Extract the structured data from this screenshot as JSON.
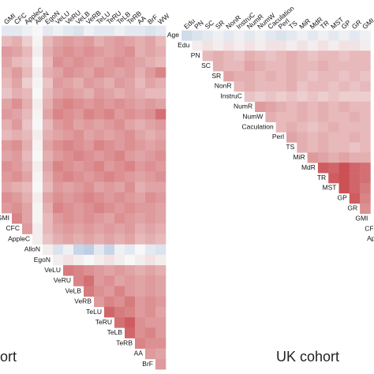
{
  "chart_data": [
    {
      "type": "heatmap",
      "caption": "ort",
      "x": [
        "GMI",
        "CFC",
        "AppleC",
        "AlloN",
        "EgoN",
        "VeLU",
        "VeRU",
        "VeLB",
        "VeRB",
        "TeLU",
        "TeRU",
        "TeLB",
        "TeRB",
        "AA",
        "BrF",
        "WW"
      ],
      "y": [
        null,
        null,
        null,
        null,
        null,
        null,
        null,
        null,
        null,
        null,
        null,
        null,
        null,
        null,
        null,
        null,
        null,
        null,
        "GMI",
        "CFC",
        "AppleC",
        "AlloN",
        "EgoN",
        "VeLU",
        "VeRU",
        "VeLB",
        "VeRB",
        "TeLU",
        "TeRU",
        "TeLB",
        "TeRB",
        "AA",
        "BrF"
      ],
      "values": [
        [
          -0.1,
          -0.1,
          -0.05,
          0,
          -0.1,
          -0.05,
          -0.1,
          -0.15,
          -0.05,
          -0.1,
          -0.1,
          -0.05,
          -0.1,
          -0.1,
          -0.15,
          -0.1
        ],
        [
          0.3,
          0.35,
          0.2,
          0.02,
          0.3,
          0.4,
          0.45,
          0.4,
          0.45,
          0.35,
          0.4,
          0.45,
          0.4,
          0.35,
          0.4,
          0.3
        ],
        [
          0.45,
          0.4,
          0.3,
          0.05,
          0.35,
          0.45,
          0.5,
          0.45,
          0.5,
          0.45,
          0.4,
          0.45,
          0.5,
          0.35,
          0.4,
          0.35
        ],
        [
          0.4,
          0.3,
          0.25,
          0,
          0.3,
          0.5,
          0.45,
          0.5,
          0.45,
          0.4,
          0.45,
          0.5,
          0.45,
          0.4,
          0.35,
          0.3
        ],
        [
          0.35,
          0.45,
          0.3,
          0.05,
          0.35,
          0.4,
          0.5,
          0.45,
          0.4,
          0.5,
          0.45,
          0.4,
          0.45,
          0.35,
          0.45,
          0.55
        ],
        [
          0.3,
          0.4,
          0.2,
          0.02,
          0.25,
          0.45,
          0.4,
          0.35,
          0.45,
          0.4,
          0.35,
          0.45,
          0.4,
          0.3,
          0.4,
          0.35
        ],
        [
          0.25,
          0.35,
          0.3,
          0,
          0.3,
          0.4,
          0.45,
          0.4,
          0.35,
          0.45,
          0.4,
          0.35,
          0.4,
          0.35,
          0.3,
          0.3
        ],
        [
          0.4,
          0.5,
          0.35,
          0.05,
          0.35,
          0.5,
          0.55,
          0.5,
          0.45,
          0.5,
          0.45,
          0.5,
          0.45,
          0.4,
          0.45,
          0.4
        ],
        [
          0.45,
          0.4,
          0.3,
          0.02,
          0.4,
          0.55,
          0.5,
          0.45,
          0.55,
          0.5,
          0.55,
          0.45,
          0.5,
          0.45,
          0.5,
          0.65
        ],
        [
          0.35,
          0.45,
          0.25,
          0,
          0.3,
          0.45,
          0.5,
          0.4,
          0.45,
          0.4,
          0.45,
          0.5,
          0.4,
          0.35,
          0.4,
          0.45
        ],
        [
          0.3,
          0.35,
          0.3,
          0.05,
          0.35,
          0.4,
          0.45,
          0.5,
          0.4,
          0.45,
          0.4,
          0.45,
          0.5,
          0.4,
          0.35,
          0.4
        ],
        [
          0.45,
          0.5,
          0.35,
          0.02,
          0.4,
          0.5,
          0.55,
          0.5,
          0.45,
          0.55,
          0.5,
          0.45,
          0.5,
          0.45,
          0.4,
          0.45
        ],
        [
          0.4,
          0.45,
          0.3,
          0,
          0.35,
          0.45,
          0.5,
          0.55,
          0.5,
          0.45,
          0.5,
          0.55,
          0.45,
          0.4,
          0.45,
          0.5
        ],
        [
          0.5,
          0.45,
          0.35,
          0.05,
          0.4,
          0.55,
          0.5,
          0.45,
          0.5,
          0.55,
          0.45,
          0.5,
          0.55,
          0.45,
          0.5,
          0.45
        ],
        [
          0.45,
          0.5,
          0.4,
          0.02,
          0.35,
          0.5,
          0.55,
          0.5,
          0.45,
          0.5,
          0.55,
          0.5,
          0.45,
          0.4,
          0.45,
          0.5
        ],
        [
          0.4,
          0.35,
          0.3,
          0,
          0.3,
          0.45,
          0.4,
          0.45,
          0.5,
          0.4,
          0.45,
          0.4,
          0.5,
          0.35,
          0.4,
          0.4
        ],
        [
          0.5,
          0.45,
          0.35,
          0.05,
          0.4,
          0.5,
          0.45,
          0.5,
          0.55,
          0.5,
          0.45,
          0.5,
          0.45,
          0.4,
          0.5,
          0.45
        ],
        [
          0.45,
          0.5,
          0.4,
          0.02,
          0.35,
          0.55,
          0.5,
          0.45,
          0.5,
          0.55,
          0.5,
          0.45,
          0.5,
          0.45,
          0.45,
          0.4
        ],
        [
          null,
          0.55,
          0.4,
          0.02,
          0.3,
          0.45,
          0.5,
          0.45,
          0.5,
          0.45,
          0.4,
          0.5,
          0.45,
          0.4,
          0.45,
          0.4
        ],
        [
          null,
          null,
          0.45,
          0.05,
          0.3,
          0.4,
          0.45,
          0.4,
          0.45,
          0.4,
          0.45,
          0.4,
          0.45,
          0.35,
          0.4,
          0.35
        ],
        [
          null,
          null,
          null,
          0.05,
          0.25,
          0.35,
          0.4,
          0.35,
          0.4,
          0.35,
          0.4,
          0.35,
          0.4,
          0.3,
          0.35,
          0.3
        ],
        [
          null,
          null,
          null,
          null,
          0.05,
          -0.15,
          -0.05,
          -0.25,
          -0.3,
          -0.1,
          -0.25,
          -0.05,
          -0.1,
          0,
          -0.1,
          -0.15
        ],
        [
          null,
          null,
          null,
          null,
          null,
          0.05,
          0.1,
          0.05,
          0,
          0.05,
          0.1,
          0.05,
          0,
          0.05,
          0.1,
          0.05
        ],
        [
          null,
          null,
          null,
          null,
          null,
          null,
          0.6,
          0.55,
          0.5,
          0.45,
          0.4,
          0.45,
          0.4,
          0.35,
          0.4,
          0.35
        ],
        [
          null,
          null,
          null,
          null,
          null,
          null,
          null,
          0.55,
          0.65,
          0.45,
          0.5,
          0.4,
          0.45,
          0.4,
          0.45,
          0.4
        ],
        [
          null,
          null,
          null,
          null,
          null,
          null,
          null,
          null,
          0.6,
          0.5,
          0.45,
          0.55,
          0.45,
          0.4,
          0.45,
          0.4
        ],
        [
          null,
          null,
          null,
          null,
          null,
          null,
          null,
          null,
          null,
          0.45,
          0.55,
          0.5,
          0.6,
          0.45,
          0.5,
          0.45
        ],
        [
          null,
          null,
          null,
          null,
          null,
          null,
          null,
          null,
          null,
          null,
          0.7,
          0.6,
          0.55,
          0.45,
          0.5,
          0.4
        ],
        [
          null,
          null,
          null,
          null,
          null,
          null,
          null,
          null,
          null,
          null,
          null,
          0.65,
          0.75,
          0.5,
          0.45,
          0.45
        ],
        [
          null,
          null,
          null,
          null,
          null,
          null,
          null,
          null,
          null,
          null,
          null,
          null,
          0.7,
          0.5,
          0.55,
          0.45
        ],
        [
          null,
          null,
          null,
          null,
          null,
          null,
          null,
          null,
          null,
          null,
          null,
          null,
          null,
          0.55,
          0.5,
          0.5
        ],
        [
          null,
          null,
          null,
          null,
          null,
          null,
          null,
          null,
          null,
          null,
          null,
          null,
          null,
          null,
          0.45,
          0.4
        ],
        [
          null,
          null,
          null,
          null,
          null,
          null,
          null,
          null,
          null,
          null,
          null,
          null,
          null,
          null,
          null,
          0.45
        ]
      ],
      "vlim": [
        -1,
        1
      ],
      "colors": [
        "#3b6fb6",
        "#f7f7f7",
        "#c0282d"
      ]
    },
    {
      "type": "heatmap",
      "caption": "UK cohort",
      "x": [
        "Edu",
        "PN",
        "SC",
        "SR",
        "NonR",
        "InstruC",
        "NumR",
        "NumW",
        "Caculation",
        "Perl",
        "TS",
        "MiR",
        "MdR",
        "TR",
        "MST",
        "GP",
        "GR",
        "GMI"
      ],
      "y": [
        "Age",
        "Edu",
        "PN",
        "SC",
        "SR",
        "NonR",
        "InstruC",
        "NumR",
        "NumW",
        "Caculation",
        "Perl",
        "TS",
        "MiR",
        "MdR",
        "TR",
        "MST",
        "GP",
        "GR",
        "GMI",
        "CFC",
        "AppleC"
      ],
      "values": [
        [
          -0.2,
          -0.15,
          -0.1,
          -0.05,
          -0.1,
          -0.05,
          -0.1,
          -0.05,
          -0.1,
          -0.15,
          -0.1,
          -0.05,
          -0.1,
          -0.05,
          -0.1,
          -0.05,
          -0.1,
          -0.05
        ],
        [
          null,
          0.05,
          0.1,
          0.05,
          0.1,
          0.05,
          0.1,
          0.05,
          0.1,
          0.1,
          0.05,
          0.1,
          0.05,
          0.1,
          0.05,
          0.1,
          0.1,
          0.05
        ],
        [
          null,
          null,
          0.3,
          0.35,
          0.3,
          0.25,
          0.35,
          0.3,
          0.25,
          0.3,
          0.35,
          0.3,
          0.25,
          0.3,
          0.3,
          0.25,
          0.3,
          0.3
        ],
        [
          null,
          null,
          null,
          0.35,
          0.3,
          0.3,
          0.4,
          0.35,
          0.3,
          0.3,
          0.35,
          0.3,
          0.3,
          0.35,
          0.3,
          0.3,
          0.3,
          0.3
        ],
        [
          null,
          null,
          null,
          null,
          0.4,
          0.35,
          0.35,
          0.3,
          0.35,
          0.3,
          0.35,
          0.3,
          0.25,
          0.3,
          0.3,
          0.25,
          0.3,
          0.25
        ],
        [
          null,
          null,
          null,
          null,
          null,
          0.3,
          0.35,
          0.3,
          0.3,
          0.3,
          0.35,
          0.25,
          0.3,
          0.3,
          0.25,
          0.3,
          0.25,
          0.3
        ],
        [
          null,
          null,
          null,
          null,
          null,
          null,
          0.25,
          0.2,
          0.25,
          0.2,
          0.25,
          0.2,
          0.25,
          0.2,
          0.25,
          0.2,
          0.2,
          0.2
        ],
        [
          null,
          null,
          null,
          null,
          null,
          null,
          null,
          0.45,
          0.4,
          0.35,
          0.3,
          0.35,
          0.3,
          0.35,
          0.3,
          0.35,
          0.3,
          0.3
        ],
        [
          null,
          null,
          null,
          null,
          null,
          null,
          null,
          null,
          0.35,
          0.3,
          0.3,
          0.35,
          0.3,
          0.35,
          0.3,
          0.3,
          0.35,
          0.3
        ],
        [
          null,
          null,
          null,
          null,
          null,
          null,
          null,
          null,
          null,
          0.3,
          0.35,
          0.3,
          0.25,
          0.3,
          0.35,
          0.3,
          0.3,
          0.3
        ],
        [
          null,
          null,
          null,
          null,
          null,
          null,
          null,
          null,
          null,
          null,
          0.4,
          0.35,
          0.3,
          0.35,
          0.3,
          0.3,
          0.35,
          0.3
        ],
        [
          null,
          null,
          null,
          null,
          null,
          null,
          null,
          null,
          null,
          null,
          null,
          0.35,
          0.3,
          0.35,
          0.3,
          0.3,
          0.25,
          0.3
        ],
        [
          null,
          null,
          null,
          null,
          null,
          null,
          null,
          null,
          null,
          null,
          null,
          null,
          0.45,
          0.4,
          0.35,
          0.4,
          0.35,
          0.35
        ],
        [
          null,
          null,
          null,
          null,
          null,
          null,
          null,
          null,
          null,
          null,
          null,
          null,
          null,
          0.75,
          0.7,
          0.8,
          0.7,
          0.65
        ],
        [
          null,
          null,
          null,
          null,
          null,
          null,
          null,
          null,
          null,
          null,
          null,
          null,
          null,
          null,
          0.75,
          0.8,
          0.7,
          0.65
        ],
        [
          null,
          null,
          null,
          null,
          null,
          null,
          null,
          null,
          null,
          null,
          null,
          null,
          null,
          null,
          null,
          0.8,
          0.7,
          0.6
        ],
        [
          null,
          null,
          null,
          null,
          null,
          null,
          null,
          null,
          null,
          null,
          null,
          null,
          null,
          null,
          null,
          null,
          0.75,
          0.55
        ],
        [
          null,
          null,
          null,
          null,
          null,
          null,
          null,
          null,
          null,
          null,
          null,
          null,
          null,
          null,
          null,
          null,
          null,
          0.5
        ],
        [
          null,
          null,
          null,
          null,
          null,
          null,
          null,
          null,
          null,
          null,
          null,
          null,
          null,
          null,
          null,
          null,
          null,
          null
        ],
        [
          null,
          null,
          null,
          null,
          null,
          null,
          null,
          null,
          null,
          null,
          null,
          null,
          null,
          null,
          null,
          null,
          null,
          null
        ],
        [
          null,
          null,
          null,
          null,
          null,
          null,
          null,
          null,
          null,
          null,
          null,
          null,
          null,
          null,
          null,
          null,
          null,
          null
        ]
      ],
      "vlim": [
        -1,
        1
      ],
      "colors": [
        "#3b6fb6",
        "#f7f7f7",
        "#c0282d"
      ]
    }
  ]
}
